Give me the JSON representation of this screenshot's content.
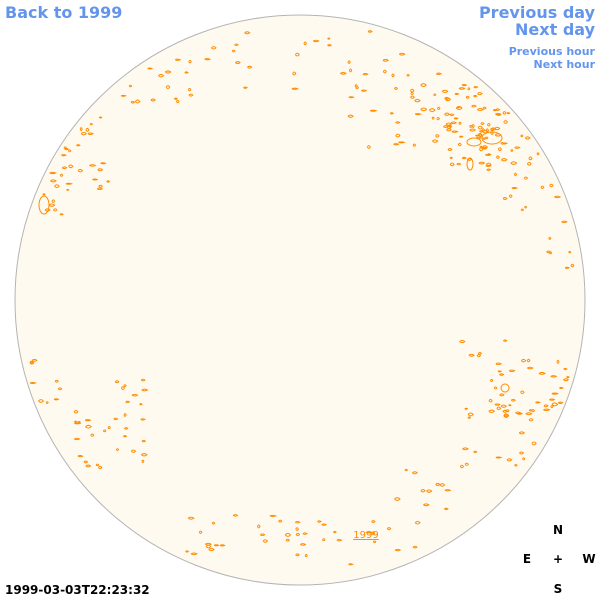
{
  "nav": {
    "back_label": "Back to 1999",
    "previous_day": "Previous day",
    "next_day": "Next day",
    "previous_hour": "Previous hour",
    "next_hour": "Next hour"
  },
  "sky": {
    "year_link": "1999"
  },
  "timestamp": "1999-03-03T22:23:32",
  "compass": {
    "north": "N",
    "east": "E",
    "center": "+",
    "west": "W",
    "south": "S"
  },
  "colors": {
    "disk_fill": "#fffaf0",
    "disk_stroke": "#b4b4b4",
    "marker": "#ff8c00",
    "link": "#6495ED"
  }
}
